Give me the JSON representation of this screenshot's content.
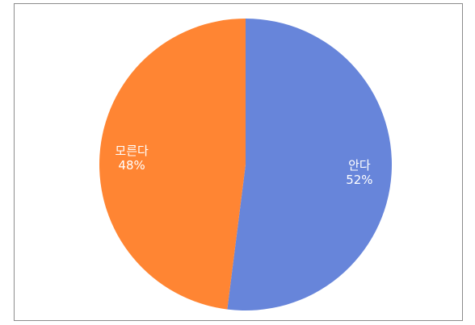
{
  "chart_data": {
    "type": "pie",
    "slices": [
      {
        "label": "안다",
        "value": 52,
        "value_label": "52%",
        "color": "#6785DA"
      },
      {
        "label": "모른다",
        "value": 48,
        "value_label": "48%",
        "color": "#FF8533"
      }
    ],
    "start_angle_deg": 0,
    "direction": "clockwise",
    "legend": "none"
  }
}
